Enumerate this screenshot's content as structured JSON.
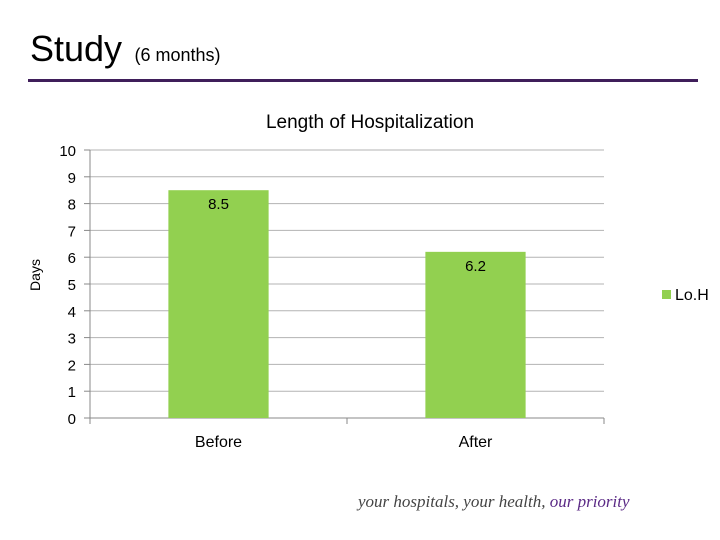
{
  "slide": {
    "title": "Study",
    "subtitle": "(6 months)",
    "footer_text": "your hospitals, your health,",
    "footer_accent": "our priority",
    "rule_color": "#3f1e5a",
    "accent_color": "#5b2a86"
  },
  "chart_data": {
    "type": "bar",
    "title": "Length of Hospitalization",
    "xlabel": "",
    "ylabel": "Days",
    "categories": [
      "Before",
      "After"
    ],
    "series": [
      {
        "name": "Lo.H",
        "values": [
          8.5,
          6.2
        ],
        "color": "#92d050"
      }
    ],
    "data_labels": [
      "8.5",
      "6.2"
    ],
    "ylim": [
      0,
      10
    ],
    "yticks": [
      0,
      1,
      2,
      3,
      4,
      5,
      6,
      7,
      8,
      9,
      10
    ],
    "grid": true,
    "legend_position": "right"
  }
}
